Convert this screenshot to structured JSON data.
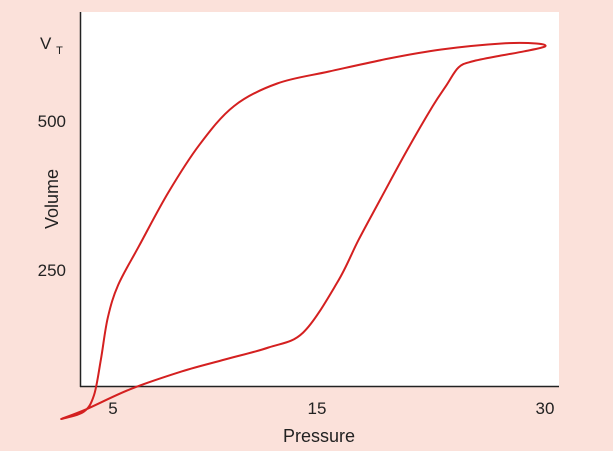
{
  "colors": {
    "background": "#fbe1da",
    "plot_area": "#ffffff",
    "axis": "#222222",
    "curve": "#d42020"
  },
  "chart_data": {
    "type": "line",
    "title": "",
    "xlabel": "Pressure",
    "ylabel": "Volume",
    "x_ticks": [
      {
        "value": 5,
        "label": "5"
      },
      {
        "value": 15,
        "label": "15"
      },
      {
        "value": 30,
        "label": "30"
      }
    ],
    "y_ticks": [
      {
        "value": 250,
        "label": "250"
      },
      {
        "value": 500,
        "label": "500"
      },
      {
        "value": 690,
        "label": "V",
        "subscript": "T"
      }
    ],
    "grid": false,
    "series": [
      {
        "color": "#d42020",
        "closed": true,
        "points": [
          [
            2,
            0
          ],
          [
            3.3,
            12
          ],
          [
            3.9,
            40
          ],
          [
            4.3,
            100
          ],
          [
            4.7,
            170
          ],
          [
            5.3,
            225
          ],
          [
            6.5,
            290
          ],
          [
            8.2,
            380
          ],
          [
            10.0,
            460
          ],
          [
            12.0,
            525
          ],
          [
            14.5,
            563
          ],
          [
            17.5,
            583
          ],
          [
            21.0,
            605
          ],
          [
            24.0,
            620
          ],
          [
            27.5,
            630
          ],
          [
            29.5,
            630
          ],
          [
            30.0,
            625
          ],
          [
            28.8,
            617
          ],
          [
            27.5,
            610
          ],
          [
            25.8,
            600
          ],
          [
            25.0,
            590
          ],
          [
            24.3,
            560
          ],
          [
            23.5,
            525
          ],
          [
            22.0,
            450
          ],
          [
            20.5,
            370
          ],
          [
            19.2,
            300
          ],
          [
            18.0,
            230
          ],
          [
            16.0,
            145
          ],
          [
            14.0,
            120
          ],
          [
            11.5,
            100
          ],
          [
            9.0,
            80
          ],
          [
            6.0,
            50
          ],
          [
            3.5,
            17
          ],
          [
            2,
            0
          ]
        ]
      }
    ]
  }
}
